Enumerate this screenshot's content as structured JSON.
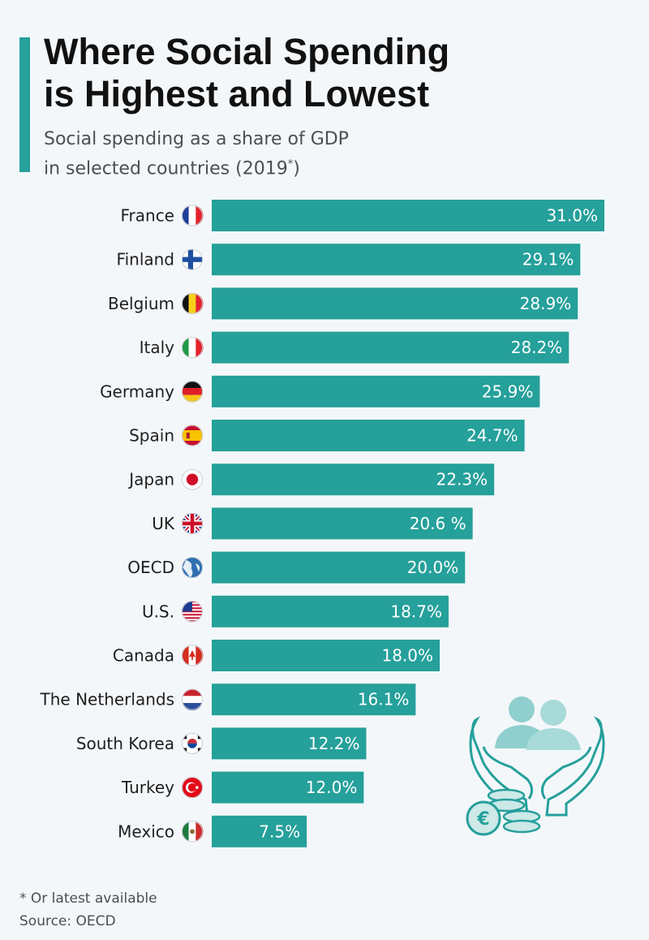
{
  "title_lines": [
    "Where Social Spending",
    "is Highest and Lowest"
  ],
  "subtitle_line1": "Social spending as a share of GDP",
  "subtitle_line2_prefix": "in selected countries (2019",
  "subtitle_line2_sup": "*",
  "subtitle_line2_suffix": ")",
  "footnote": "* Or latest available",
  "source": "Source: OECD",
  "colors": {
    "bar": "#25a09b",
    "accent": "#25a09b",
    "illustration": "#8fcfcd",
    "illustration_stroke": "#25a09b"
  },
  "chart_data": {
    "type": "bar",
    "orientation": "horizontal",
    "title": "Where Social Spending is Highest and Lowest",
    "subtitle": "Social spending as a share of GDP in selected countries (2019*)",
    "unit": "% of GDP",
    "xlim": [
      0,
      31
    ],
    "categories": [
      "France",
      "Finland",
      "Belgium",
      "Italy",
      "Germany",
      "Spain",
      "Japan",
      "UK",
      "OECD",
      "U.S.",
      "Canada",
      "The Netherlands",
      "South Korea",
      "Turkey",
      "Mexico"
    ],
    "values": [
      31.0,
      29.1,
      28.9,
      28.2,
      25.9,
      24.7,
      22.3,
      20.6,
      20.0,
      18.7,
      18.0,
      16.1,
      12.2,
      12.0,
      7.5
    ],
    "value_labels": [
      "31.0%",
      "29.1%",
      "28.9%",
      "28.2%",
      "25.9%",
      "24.7%",
      "22.3%",
      "20.6 %",
      "20.0%",
      "18.7%",
      "18.0%",
      "16.1%",
      "12.2%",
      "12.0%",
      "7.5%"
    ],
    "flags": [
      "france-flag-icon",
      "finland-flag-icon",
      "belgium-flag-icon",
      "italy-flag-icon",
      "germany-flag-icon",
      "spain-flag-icon",
      "japan-flag-icon",
      "uk-flag-icon",
      "globe-icon",
      "usa-flag-icon",
      "canada-flag-icon",
      "netherlands-flag-icon",
      "south-korea-flag-icon",
      "turkey-flag-icon",
      "mexico-flag-icon"
    ]
  },
  "illustration_icon": "hands-people-coins-euro-icon"
}
